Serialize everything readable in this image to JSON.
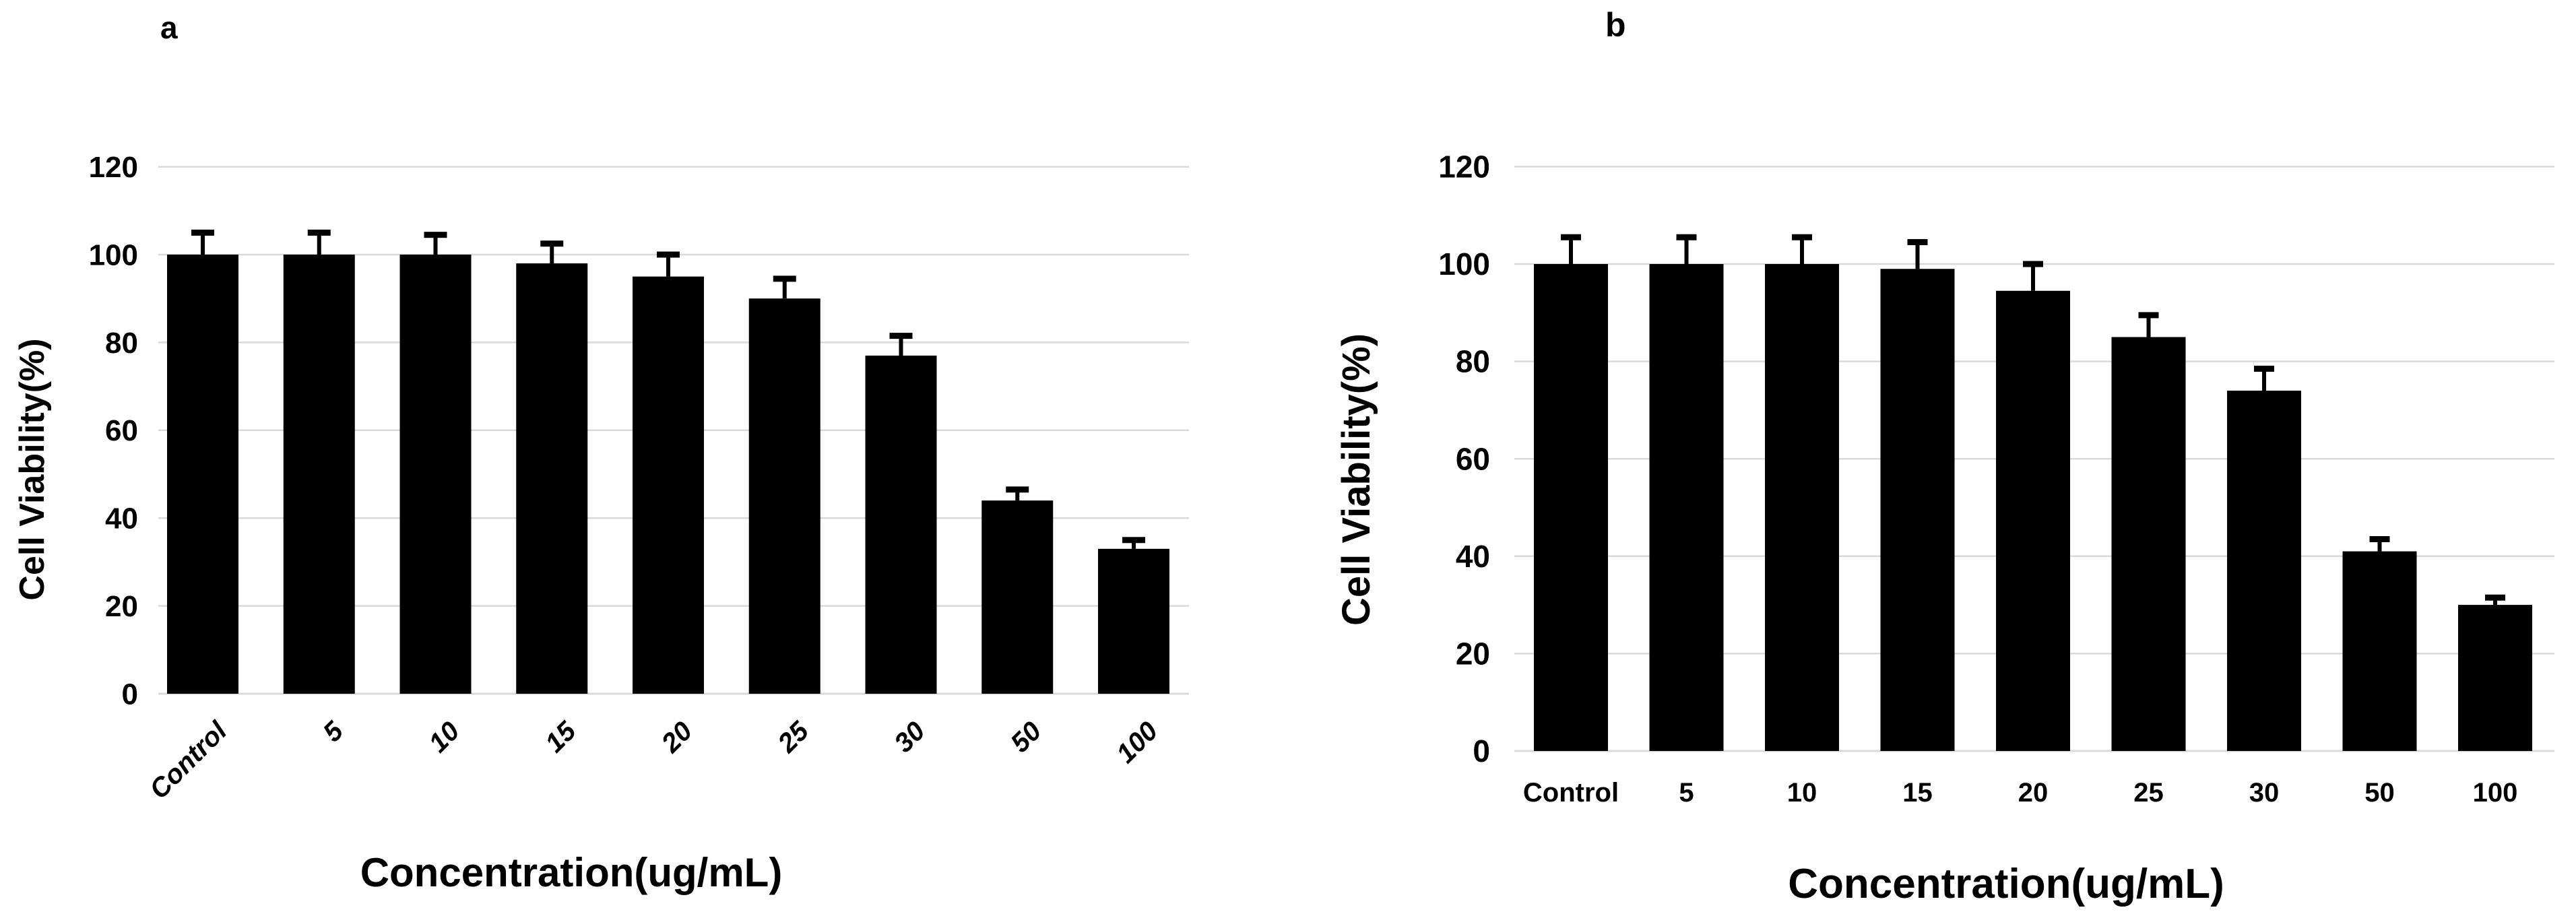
{
  "figure": {
    "background": "#ffffff",
    "bar_color": "#000000",
    "gridline_color": "#d9d9d9",
    "text_color": "#000000"
  },
  "chart_data": [
    {
      "panel_label": "a",
      "type": "bar",
      "categories": [
        "Control",
        "5",
        "10",
        "15",
        "20",
        "25",
        "30",
        "50",
        "100"
      ],
      "values": [
        100,
        100,
        100,
        98,
        95,
        90,
        77,
        44,
        33
      ],
      "error_bars_plus": [
        5,
        5,
        4.5,
        4.5,
        5,
        4.5,
        4.5,
        2.5,
        2
      ],
      "xlabel": "Concentration(ug/mL)",
      "ylabel": "Cell Viability(%)",
      "ylim": [
        0,
        120
      ],
      "yticks": [
        0,
        20,
        40,
        60,
        80,
        100,
        120
      ],
      "grid": true,
      "legend": "none",
      "x_tick_label_rotation_deg": 45,
      "x_tick_label_style": "bold-italic",
      "bar_color": "#000000"
    },
    {
      "panel_label": "b",
      "type": "bar",
      "categories": [
        "Control",
        "5",
        "10",
        "15",
        "20",
        "25",
        "30",
        "50",
        "100"
      ],
      "values": [
        100,
        100,
        100,
        99,
        94.5,
        85,
        74,
        41,
        30
      ],
      "error_bars_plus": [
        5.5,
        5.5,
        5.5,
        5.5,
        5.5,
        4.5,
        4.5,
        2.5,
        1.5
      ],
      "xlabel": "Concentration(ug/mL)",
      "ylabel": "Cell Viability(%)",
      "ylim": [
        0,
        120
      ],
      "yticks": [
        0,
        20,
        40,
        60,
        80,
        100,
        120
      ],
      "grid": true,
      "legend": "none",
      "x_tick_label_rotation_deg": 0,
      "x_tick_label_style": "bold",
      "bar_color": "#000000"
    }
  ]
}
